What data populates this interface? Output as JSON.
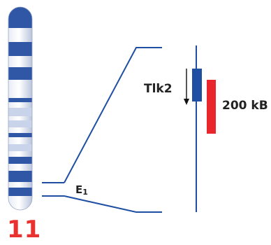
{
  "chromosome": {
    "number": "11",
    "number_color": "#e8322f",
    "band_color": "#2f57a6",
    "light_band_color": "#c9d3ea"
  },
  "region": {
    "label_main": "E",
    "label_sub": "1"
  },
  "gene": {
    "name": "Tlk2",
    "color": "#1f4fa3"
  },
  "scale_bar": {
    "label": "200 kB",
    "color": "#e8262b"
  },
  "line_color": "#1f4fa3"
}
